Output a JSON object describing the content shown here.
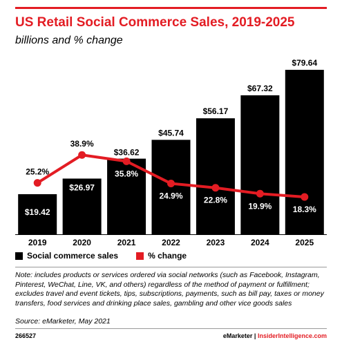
{
  "title": "US Retail Social Commerce Sales, 2019-2025",
  "subtitle": "billions and % change",
  "legend": {
    "bars_label": "Social commerce sales",
    "line_label": "% change"
  },
  "note": "Note: includes products or services ordered via social networks (such as Facebook, Instagram, Pinterest, WeChat, Line, VK, and others) regardless of the method of payment or fulfillment; excludes travel and event tickets, tips, subscriptions, payments, such as bill pay, taxes or money transfers, food services and drinking place sales, gambling and other vice goods sales",
  "source": "Source: eMarketer, May 2021",
  "footer": {
    "chart_id": "266527",
    "brand_left": "eMarketer",
    "brand_sep": "|",
    "brand_right": "InsiderIntelligence.com"
  },
  "colors": {
    "accent": "#e31c23",
    "bar": "#000000"
  },
  "chart_data": {
    "type": "bar",
    "categories": [
      "2019",
      "2020",
      "2021",
      "2022",
      "2023",
      "2024",
      "2025"
    ],
    "series": [
      {
        "name": "Social commerce sales",
        "type": "bar",
        "values": [
          19.42,
          26.97,
          36.62,
          45.74,
          56.17,
          67.32,
          79.64
        ],
        "labels": [
          "$19.42",
          "$26.97",
          "$36.62",
          "$45.74",
          "$56.17",
          "$67.32",
          "$79.64"
        ]
      },
      {
        "name": "% change",
        "type": "line",
        "values": [
          25.2,
          38.9,
          35.8,
          24.9,
          22.8,
          19.9,
          18.3
        ],
        "labels": [
          "25.2%",
          "38.9%",
          "35.8%",
          "24.9%",
          "22.8%",
          "19.9%",
          "18.3%"
        ]
      }
    ],
    "title": "US Retail Social Commerce Sales, 2019-2025",
    "subtitle": "billions and % change",
    "grid": false,
    "legend_position": "bottom-left"
  }
}
